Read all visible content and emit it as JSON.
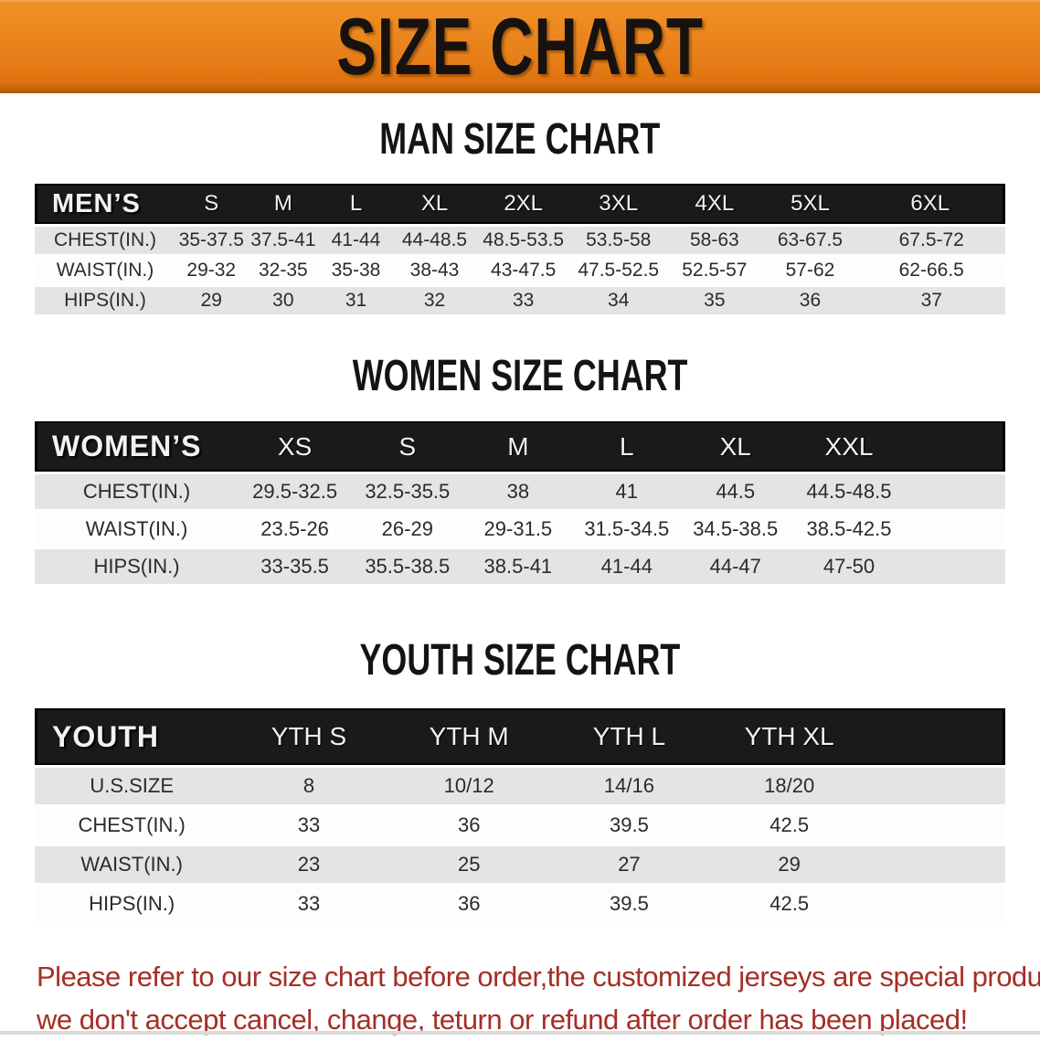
{
  "banner": {
    "title": "SIZE CHART",
    "bg_color": "#E8811B",
    "text_color": "#171210"
  },
  "colors": {
    "header_bar": "#1C1A19",
    "row_gray": "#E4E4E4",
    "row_white": "#FDFDFD",
    "cell_text": "#2B2B2B",
    "disclaimer_red": "#A42F26"
  },
  "sections": [
    {
      "id": "men",
      "title": "MAN SIZE CHART",
      "header_label": "MEN’S",
      "columns": [
        "S",
        "M",
        "L",
        "XL",
        "2XL",
        "3XL",
        "4XL",
        "5XL",
        "6XL"
      ],
      "rows": [
        {
          "label": "CHEST(IN.)",
          "values": [
            "35-37.5",
            "37.5-41",
            "41-44",
            "44-48.5",
            "48.5-53.5",
            "53.5-58",
            "58-63",
            "63-67.5",
            "67.5-72"
          ]
        },
        {
          "label": "WAIST(IN.)",
          "values": [
            "29-32",
            "32-35",
            "35-38",
            "38-43",
            "43-47.5",
            "47.5-52.5",
            "52.5-57",
            "57-62",
            "62-66.5"
          ]
        },
        {
          "label": "HIPS(IN.)",
          "values": [
            "29",
            "30",
            "31",
            "32",
            "33",
            "34",
            "35",
            "36",
            "37"
          ]
        }
      ]
    },
    {
      "id": "women",
      "title": "WOMEN SIZE CHART",
      "header_label": "WOMEN’S",
      "columns": [
        "XS",
        "S",
        "M",
        "L",
        "XL",
        "XXL"
      ],
      "rows": [
        {
          "label": "CHEST(IN.)",
          "values": [
            "29.5-32.5",
            "32.5-35.5",
            "38",
            "41",
            "44.5",
            "44.5-48.5"
          ]
        },
        {
          "label": "WAIST(IN.)",
          "values": [
            "23.5-26",
            "26-29",
            "29-31.5",
            "31.5-34.5",
            "34.5-38.5",
            "38.5-42.5"
          ]
        },
        {
          "label": "HIPS(IN.)",
          "values": [
            "33-35.5",
            "35.5-38.5",
            "38.5-41",
            "41-44",
            "44-47",
            "47-50"
          ]
        }
      ]
    },
    {
      "id": "youth",
      "title": "YOUTH SIZE CHART",
      "header_label": "YOUTH",
      "columns": [
        "YTH S",
        "YTH M",
        "YTH L",
        "YTH XL"
      ],
      "rows": [
        {
          "label": "U.S.SIZE",
          "values": [
            "8",
            "10/12",
            "14/16",
            "18/20"
          ]
        },
        {
          "label": "CHEST(IN.)",
          "values": [
            "33",
            "36",
            "39.5",
            "42.5"
          ]
        },
        {
          "label": "WAIST(IN.)",
          "values": [
            "23",
            "25",
            "27",
            "29"
          ]
        },
        {
          "label": "HIPS(IN.)",
          "values": [
            "33",
            "36",
            "39.5",
            "42.5"
          ]
        }
      ]
    }
  ],
  "disclaimer": {
    "line1": "Please refer to our size chart before order,the customized jerseys are special products,",
    "line2": "we don't accept cancel, change, teturn or refund after order has been placed!"
  }
}
